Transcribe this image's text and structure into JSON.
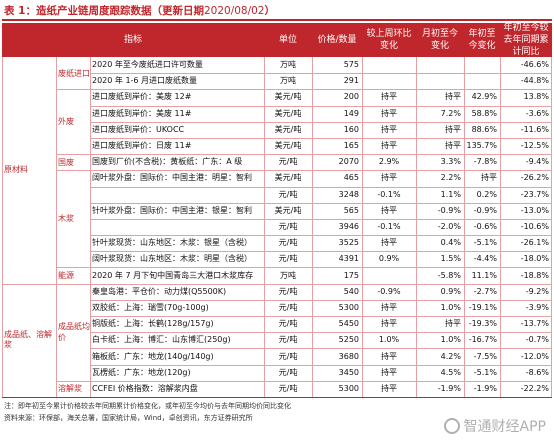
{
  "title": {
    "prefix": "表 1：造纸产业链周度跟踪数据（更新日期",
    "date": "2020/08/02",
    "suffix": "）"
  },
  "headers": [
    "指标",
    "单位",
    "价格/数量",
    "较上周环比变化",
    "月初至今变化",
    "年初至今变化",
    "年初至今较去年同期累计同比"
  ],
  "level1": [
    {
      "label": "原材料",
      "rows": [
        0,
        13
      ]
    },
    {
      "label": "成品纸、溶解浆",
      "rows": [
        14,
        20
      ]
    }
  ],
  "level2": [
    {
      "label": "废纸进口",
      "rows": [
        0,
        1
      ]
    },
    {
      "label": "外废",
      "rows": [
        2,
        5
      ]
    },
    {
      "label": "国废",
      "rows": [
        6,
        6
      ]
    },
    {
      "label": "木浆",
      "rows": [
        7,
        12
      ]
    },
    {
      "label": "能源",
      "rows": [
        13,
        13
      ]
    },
    {
      "label": "成品纸均价",
      "rows": [
        14,
        19
      ]
    },
    {
      "label": "溶解浆",
      "rows": [
        20,
        20
      ]
    }
  ],
  "rows": [
    {
      "ind": "2020 年至今废纸进口许可数量",
      "unit": "万吨",
      "price": "575",
      "wow": "",
      "mtd": "",
      "ytd": "",
      "yoy": "-46.6%"
    },
    {
      "ind": "2020 年 1-6 月进口废纸数量",
      "unit": "万吨",
      "price": "291",
      "wow": "",
      "mtd": "",
      "ytd": "",
      "yoy": "-44.8%"
    },
    {
      "ind": "进口废纸到岸价：美废 12#",
      "unit": "美元/吨",
      "price": "200",
      "wow": "持平",
      "mtd": "持平",
      "ytd": "42.9%",
      "yoy": "13.8%"
    },
    {
      "ind": "进口废纸到岸价：美废 11#",
      "unit": "美元/吨",
      "price": "149",
      "wow": "持平",
      "mtd": "7.2%",
      "ytd": "58.8%",
      "yoy": "-3.6%"
    },
    {
      "ind": "进口废纸到岸价：UKOCC",
      "unit": "美元/吨",
      "price": "160",
      "wow": "持平",
      "mtd": "持平",
      "ytd": "88.6%",
      "yoy": "-11.6%"
    },
    {
      "ind": "进口废纸到岸价：日废 11#",
      "unit": "美元/吨",
      "price": "165",
      "wow": "持平",
      "mtd": "持平",
      "ytd": "135.7%",
      "yoy": "-12.5%"
    },
    {
      "ind": "国废到厂价(不含税)：黄板纸：广东：A 级",
      "unit": "元/吨",
      "price": "2070",
      "wow": "2.9%",
      "mtd": "3.3%",
      "ytd": "-7.8%",
      "yoy": "-9.4%"
    },
    {
      "ind": "阔叶浆外盘：国际价：中国主港：明星：智利",
      "unit": "美元/吨",
      "price": "465",
      "wow": "持平",
      "mtd": "2.2%",
      "ytd": "持平",
      "yoy": "-26.2%"
    },
    {
      "ind": "",
      "unit": "元/吨",
      "price": "3248",
      "wow": "-0.1%",
      "mtd": "1.1%",
      "ytd": "0.2%",
      "yoy": "-23.7%"
    },
    {
      "ind": "针叶浆外盘：国际价：中国主港：银星：智利",
      "unit": "美元/吨",
      "price": "565",
      "wow": "持平",
      "mtd": "-0.9%",
      "ytd": "-0.9%",
      "yoy": "-13.0%"
    },
    {
      "ind": "",
      "unit": "元/吨",
      "price": "3946",
      "wow": "-0.1%",
      "mtd": "-2.0%",
      "ytd": "-0.6%",
      "yoy": "-10.6%"
    },
    {
      "ind": "针叶浆现货：山东地区：木浆：银星（含税）",
      "unit": "元/吨",
      "price": "3525",
      "wow": "持平",
      "mtd": "0.4%",
      "ytd": "-5.1%",
      "yoy": "-26.1%"
    },
    {
      "ind": "阔叶浆现货：山东地区：木浆：明星（含税）",
      "unit": "元/吨",
      "price": "4391",
      "wow": "0.9%",
      "mtd": "1.5%",
      "ytd": "-4.4%",
      "yoy": "-18.0%"
    },
    {
      "ind": "2020 年 7 月下旬中国青岛三大港口木浆库存",
      "unit": "万吨",
      "price": "175",
      "wow": "",
      "mtd": "-5.8%",
      "ytd": "11.1%",
      "yoy": "-18.8%"
    },
    {
      "ind": "秦皇岛港：平仓价：动力煤(Q5500K)",
      "unit": "元/吨",
      "price": "540",
      "wow": "-0.9%",
      "mtd": "0.9%",
      "ytd": "-2.7%",
      "yoy": "-9.2%"
    },
    {
      "ind": "双胶纸：上海：瑞雪(70g-100g)",
      "unit": "元/吨",
      "price": "5300",
      "wow": "持平",
      "mtd": "1.0%",
      "ytd": "-19.1%",
      "yoy": "-3.9%"
    },
    {
      "ind": "铜版纸：上海：长鹤(128g/157g)",
      "unit": "元/吨",
      "price": "5450",
      "wow": "持平",
      "mtd": "持平",
      "ytd": "-19.3%",
      "yoy": "-13.7%"
    },
    {
      "ind": "白卡纸：上海：博汇：山东博汇(250g)",
      "unit": "元/吨",
      "price": "5250",
      "wow": "1.0%",
      "mtd": "1.0%",
      "ytd": "-16.7%",
      "yoy": "-0.7%"
    },
    {
      "ind": "箱板纸：广东：地龙(140g/140g)",
      "unit": "元/吨",
      "price": "3680",
      "wow": "持平",
      "mtd": "4.2%",
      "ytd": "-7.5%",
      "yoy": "-12.0%"
    },
    {
      "ind": "瓦楞纸：广东：地龙(120g)",
      "unit": "元/吨",
      "price": "3450",
      "wow": "持平",
      "mtd": "4.5%",
      "ytd": "-5.1%",
      "yoy": "-8.6%"
    },
    {
      "ind": "CCFEI 价格指数：溶解浆内盘",
      "unit": "元/吨",
      "price": "5300",
      "wow": "持平",
      "mtd": "-1.9%",
      "ytd": "-1.9%",
      "yoy": "-22.2%"
    }
  ],
  "notes": [
    "注：即年初至今累计价格较去年同期累计价格变化，或年初至今均价与去年同期均价同比变化",
    "资料来源：环保部，海关总署，国家统计局，Wind，卓创资讯，东方证券研究所"
  ],
  "watermark": "智通财经APP",
  "colors": {
    "accent": "#c0272d",
    "grid": "#e4a0a2"
  }
}
